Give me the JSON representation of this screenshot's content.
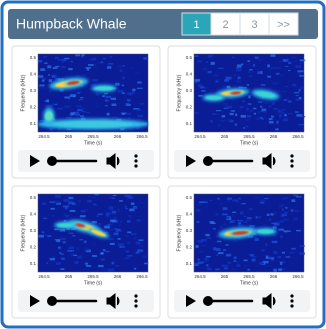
{
  "header": {
    "title": "Humpback Whale",
    "pagination": [
      "1",
      "2",
      "3",
      ">>"
    ],
    "active_page": 0
  },
  "cards": [
    {
      "y_label": "Frequency (kHz)",
      "x_label": "Time (s)",
      "yticks": [
        "0.5",
        "0.4",
        "0.3",
        "0.2",
        "0.1"
      ],
      "xticks": [
        "264.5",
        "265",
        "265.5",
        "266",
        "266.5"
      ]
    },
    {
      "y_label": "Frequency (kHz)",
      "x_label": "Time (s)",
      "yticks": [
        "0.5",
        "0.4",
        "0.3",
        "0.2",
        "0.1"
      ],
      "xticks": [
        "264.5",
        "265",
        "265.5",
        "266",
        "266.5"
      ]
    },
    {
      "y_label": "Frequency (kHz)",
      "x_label": "Time (s)",
      "yticks": [
        "0.5",
        "0.4",
        "0.3",
        "0.2",
        "0.1"
      ],
      "xticks": [
        "264.5",
        "265",
        "265.5",
        "266",
        "266.5"
      ]
    },
    {
      "y_label": "Frequency (kHz)",
      "x_label": "Time (s)",
      "yticks": [
        "0.5",
        "0.4",
        "0.3",
        "0.2",
        "0.1"
      ],
      "xticks": [
        "264.5",
        "265",
        "265.5",
        "266",
        "266.5"
      ]
    }
  ]
}
